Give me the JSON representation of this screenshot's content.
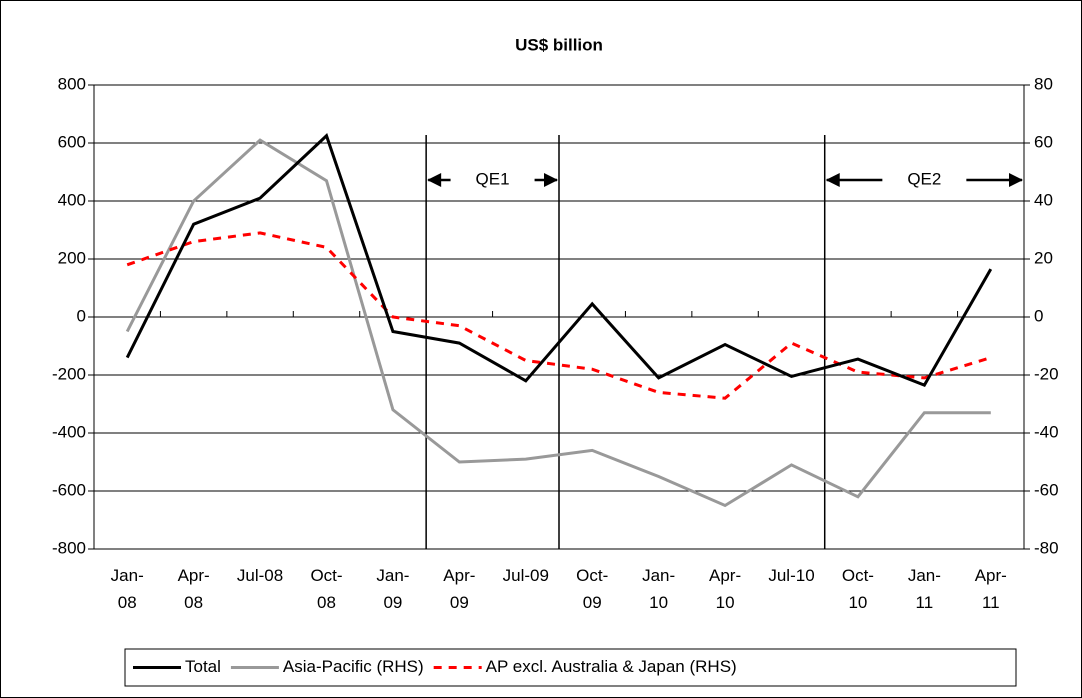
{
  "chart_data": {
    "type": "line",
    "title": "US$ billion",
    "categories": [
      "Jan-\n08",
      "Apr-\n08",
      "Jul-08",
      "Oct-\n08",
      "Jan-\n09",
      "Apr-\n09",
      "Jul-09",
      "Oct-\n09",
      "Jan-\n10",
      "Apr-\n10",
      "Jul-10",
      "Oct-\n10",
      "Jan-\n11",
      "Apr-\n11"
    ],
    "series": [
      {
        "name": "Total",
        "color": "#000000",
        "dash": "solid",
        "values": [
          -140,
          320,
          410,
          625,
          -50,
          -90,
          -220,
          45,
          -210,
          -95,
          -205,
          -145,
          -235,
          165
        ]
      },
      {
        "name": "Asia-Pacific (RHS)",
        "color": "#999999",
        "dash": "solid",
        "axis": "y2",
        "values": [
          -5,
          40,
          61,
          47,
          -32,
          -50,
          -49,
          -46,
          -55,
          -65,
          -51,
          -62,
          -33,
          -33
        ]
      },
      {
        "name": "AP excl. Australia & Japan (RHS)",
        "color": "#ff0000",
        "dash": "dashed",
        "axis": "y2",
        "values": [
          18,
          26,
          29,
          24,
          0,
          -3,
          -15,
          -18,
          -26,
          -28,
          -9,
          -19,
          -21,
          -14
        ]
      }
    ],
    "ylim": [
      -800,
      800
    ],
    "yticks": [
      -800,
      -600,
      -400,
      -200,
      0,
      200,
      400,
      600,
      800
    ],
    "y2lim": [
      -80,
      80
    ],
    "y2ticks": [
      -80,
      -60,
      -40,
      -20,
      0,
      20,
      40,
      60,
      80
    ],
    "grid": true,
    "annotations": [
      {
        "text": "QE1",
        "start": 4.5,
        "end": 6.5
      },
      {
        "text": "QE2",
        "start": 10.5,
        "end": 13.5
      }
    ],
    "legend": "bottom"
  }
}
